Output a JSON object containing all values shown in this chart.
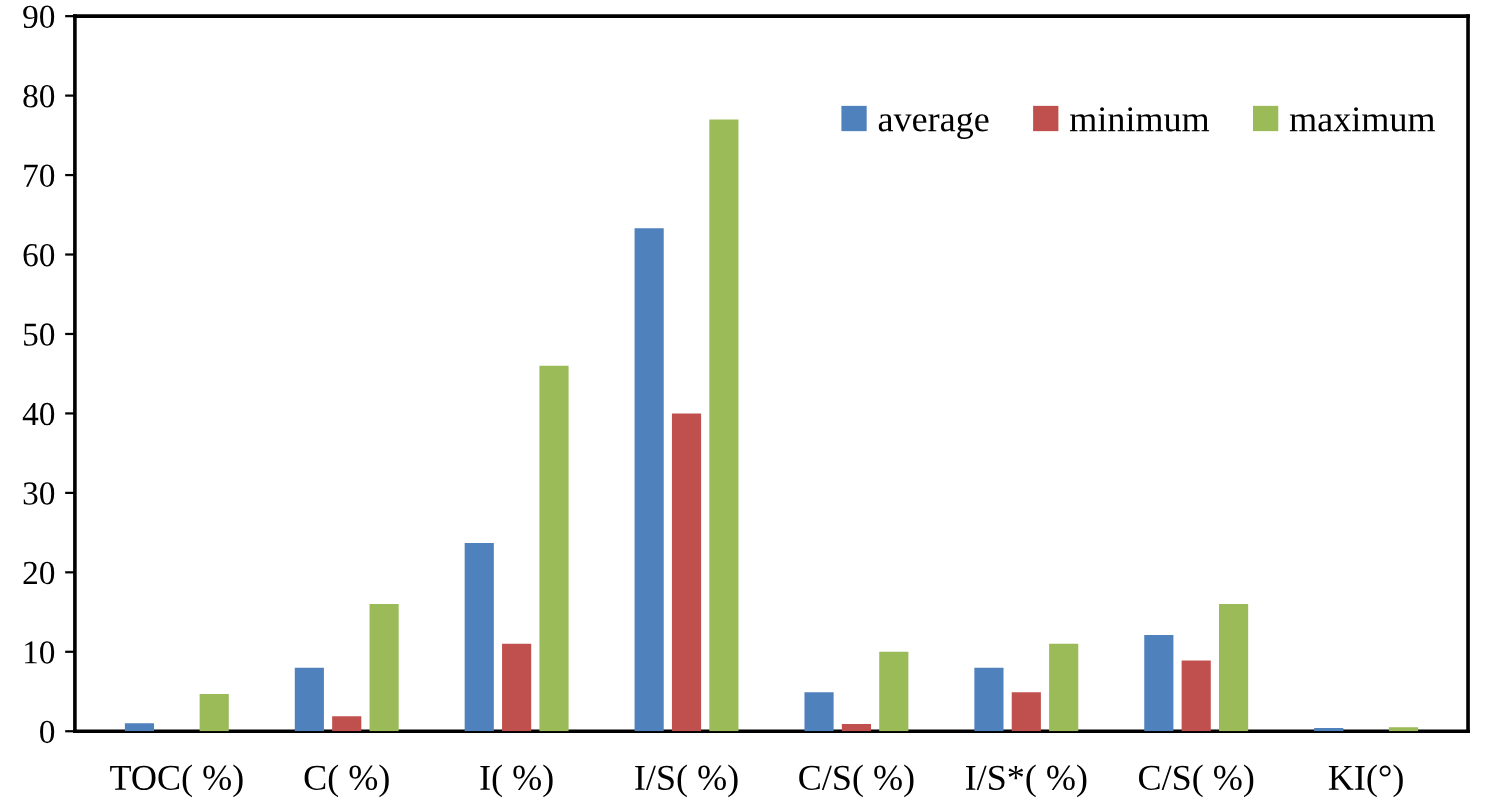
{
  "chart_data": {
    "type": "bar",
    "categories": [
      "TOC( %)",
      "C( %)",
      "I( %)",
      "I/S( %)",
      "C/S( %)",
      "I/S*( %)",
      "C/S( %)",
      "KI(°)"
    ],
    "series": [
      {
        "name": "average",
        "color": "#4f81bd",
        "values": [
          1.0,
          8.0,
          23.7,
          63.3,
          4.9,
          8.0,
          12.1,
          0.4
        ]
      },
      {
        "name": "minimum",
        "color": "#c0504d",
        "values": [
          null,
          1.9,
          11,
          40,
          0.9,
          4.9,
          8.9,
          null
        ]
      },
      {
        "name": "maximum",
        "color": "#9bbb59",
        "values": [
          4.7,
          16,
          46,
          77,
          10,
          11,
          16,
          0.5
        ]
      }
    ],
    "ylim": [
      0,
      90
    ],
    "yticks": [
      0,
      10,
      20,
      30,
      40,
      50,
      60,
      70,
      80,
      90
    ],
    "grid": false,
    "legend": "top right"
  }
}
